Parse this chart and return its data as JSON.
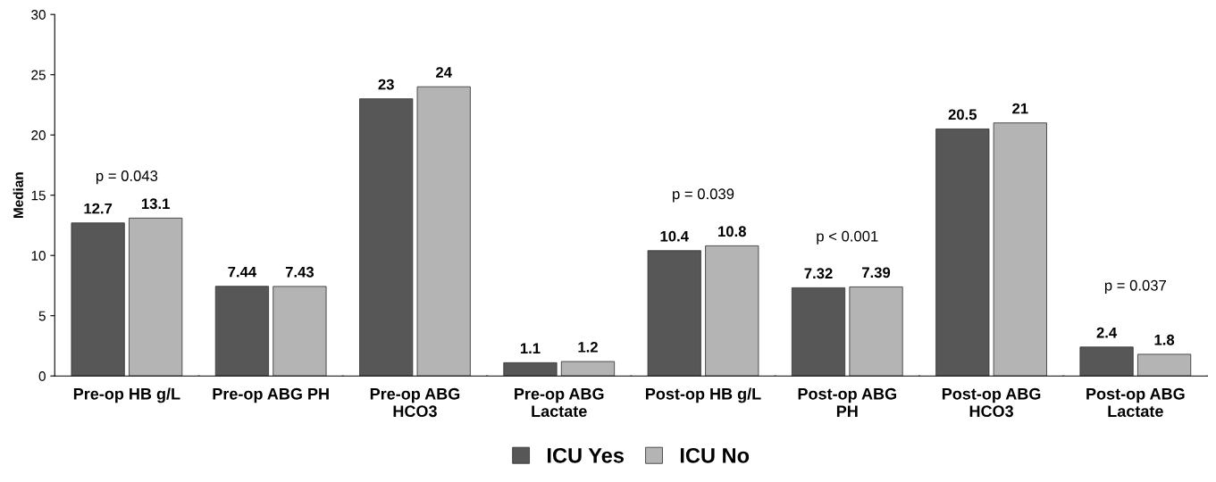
{
  "chart_data": {
    "type": "bar",
    "ylabel": "Median",
    "categories": [
      "Pre-op HB g/L",
      "Pre-op ABG PH",
      "Pre-op ABG\nHCO3",
      "Pre-op ABG\nLactate",
      "Post-op HB g/L",
      "Post-op ABG\nPH",
      "Post-op ABG\nHCO3",
      "Post-op ABG\nLactate"
    ],
    "series": [
      {
        "name": "ICU Yes",
        "color": "#575757",
        "values": [
          12.7,
          7.44,
          23,
          1.1,
          10.4,
          7.32,
          20.5,
          2.4
        ]
      },
      {
        "name": "ICU No",
        "color": "#b4b4b4",
        "values": [
          13.1,
          7.43,
          24,
          1.2,
          10.8,
          7.39,
          21,
          1.8
        ]
      }
    ],
    "ylim": [
      0,
      30
    ],
    "yticks": [
      0,
      5,
      10,
      15,
      20,
      25,
      30
    ],
    "grid": false,
    "legend": "bottom",
    "data_labels": true,
    "annotations": [
      "p = 0.043",
      "p = 0.039",
      "p < 0.001",
      "p = 0.037"
    ]
  }
}
